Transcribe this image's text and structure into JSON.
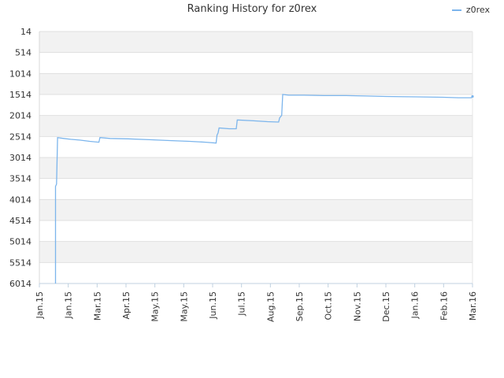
{
  "chart_data": {
    "type": "line",
    "title": "Ranking History for z0rex",
    "xlabel": "",
    "ylabel": "",
    "x_ticks": [
      "Jan.15",
      "Jan.15",
      "Mar.15",
      "Apr.15",
      "May.15",
      "May.15",
      "Jun.15",
      "Jul.15",
      "Aug.15",
      "Sep.15",
      "Oct.15",
      "Nov.15",
      "Dec.15",
      "Jan.16",
      "Feb.16",
      "Mar.16"
    ],
    "y_ticks": [
      "14",
      "514",
      "1014",
      "1514",
      "2014",
      "2514",
      "3014",
      "3514",
      "4014",
      "4514",
      "5014",
      "5514",
      "6014"
    ],
    "ylim": [
      14,
      6014
    ],
    "y_inverted": true,
    "xlim": [
      "2015-01-01",
      "2016-03-05"
    ],
    "grid": "horizontal bands",
    "legend_position": "top-right",
    "series": [
      {
        "name": "z0rex",
        "color": "#7cb5ec",
        "points": [
          {
            "x": "2015-01-17",
            "y": 6014
          },
          {
            "x": "2015-01-17",
            "y": 3700
          },
          {
            "x": "2015-01-18",
            "y": 3650
          },
          {
            "x": "2015-01-19",
            "y": 2540
          },
          {
            "x": "2015-01-25",
            "y": 2560
          },
          {
            "x": "2015-02-01",
            "y": 2580
          },
          {
            "x": "2015-02-10",
            "y": 2600
          },
          {
            "x": "2015-02-20",
            "y": 2630
          },
          {
            "x": "2015-03-01",
            "y": 2650
          },
          {
            "x": "2015-03-02",
            "y": 2540
          },
          {
            "x": "2015-03-12",
            "y": 2560
          },
          {
            "x": "2015-03-30",
            "y": 2570
          },
          {
            "x": "2015-04-20",
            "y": 2590
          },
          {
            "x": "2015-05-10",
            "y": 2610
          },
          {
            "x": "2015-05-30",
            "y": 2630
          },
          {
            "x": "2015-06-15",
            "y": 2650
          },
          {
            "x": "2015-06-25",
            "y": 2670
          },
          {
            "x": "2015-06-26",
            "y": 2480
          },
          {
            "x": "2015-06-27",
            "y": 2430
          },
          {
            "x": "2015-06-28",
            "y": 2310
          },
          {
            "x": "2015-07-08",
            "y": 2330
          },
          {
            "x": "2015-07-15",
            "y": 2330
          },
          {
            "x": "2015-07-16",
            "y": 2120
          },
          {
            "x": "2015-08-01",
            "y": 2140
          },
          {
            "x": "2015-08-15",
            "y": 2160
          },
          {
            "x": "2015-08-26",
            "y": 2170
          },
          {
            "x": "2015-08-27",
            "y": 2070
          },
          {
            "x": "2015-08-29",
            "y": 2010
          },
          {
            "x": "2015-08-30",
            "y": 1514
          },
          {
            "x": "2015-09-05",
            "y": 1530
          },
          {
            "x": "2015-09-20",
            "y": 1530
          },
          {
            "x": "2015-10-10",
            "y": 1540
          },
          {
            "x": "2015-11-01",
            "y": 1540
          },
          {
            "x": "2015-11-20",
            "y": 1550
          },
          {
            "x": "2015-12-10",
            "y": 1560
          },
          {
            "x": "2016-01-10",
            "y": 1570
          },
          {
            "x": "2016-02-05",
            "y": 1580
          },
          {
            "x": "2016-02-20",
            "y": 1590
          },
          {
            "x": "2016-03-04",
            "y": 1590
          },
          {
            "x": "2016-03-05",
            "y": 1560
          }
        ]
      }
    ]
  }
}
